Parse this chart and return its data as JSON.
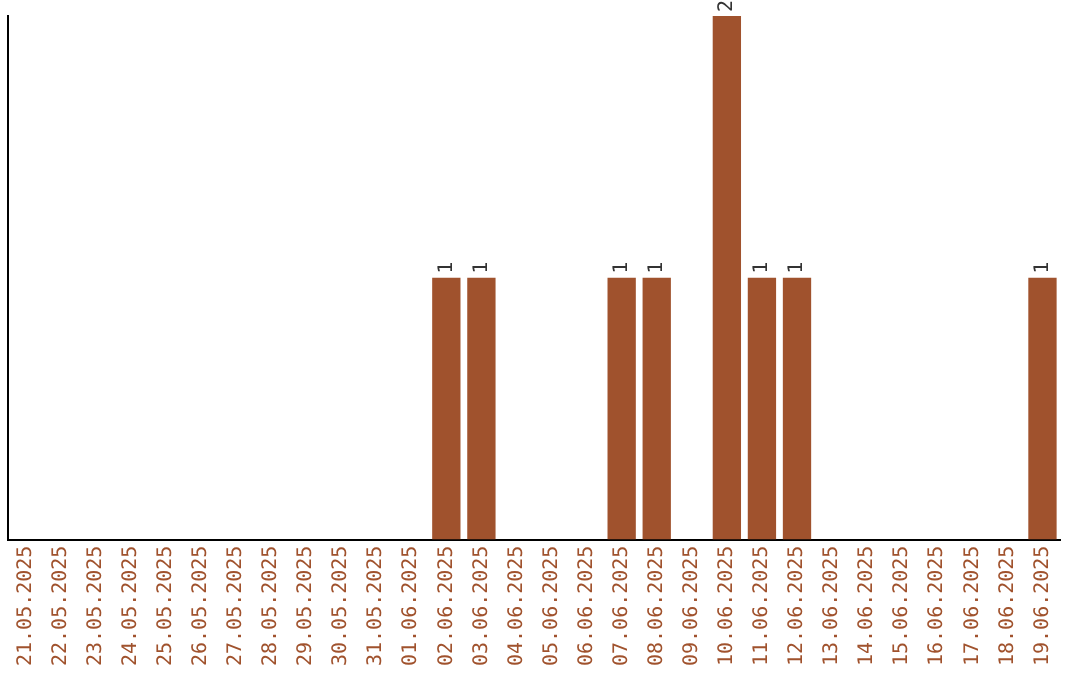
{
  "chart_data": {
    "type": "bar",
    "categories": [
      "21.05.2025",
      "22.05.2025",
      "23.05.2025",
      "24.05.2025",
      "25.05.2025",
      "26.05.2025",
      "27.05.2025",
      "28.05.2025",
      "29.05.2025",
      "30.05.2025",
      "31.05.2025",
      "01.06.2025",
      "02.06.2025",
      "03.06.2025",
      "04.06.2025",
      "05.06.2025",
      "06.06.2025",
      "07.06.2025",
      "08.06.2025",
      "09.06.2025",
      "10.06.2025",
      "11.06.2025",
      "12.06.2025",
      "13.06.2025",
      "14.06.2025",
      "15.06.2025",
      "16.06.2025",
      "17.06.2025",
      "18.06.2025",
      "19.06.2025"
    ],
    "values": [
      null,
      null,
      null,
      null,
      null,
      null,
      null,
      null,
      null,
      null,
      null,
      null,
      1,
      1,
      null,
      null,
      null,
      1,
      1,
      null,
      2,
      1,
      1,
      null,
      null,
      null,
      null,
      null,
      null,
      1
    ],
    "data_labels": true,
    "color": "#a0522d",
    "tick_labels": "x",
    "grid": false,
    "legend": false
  }
}
